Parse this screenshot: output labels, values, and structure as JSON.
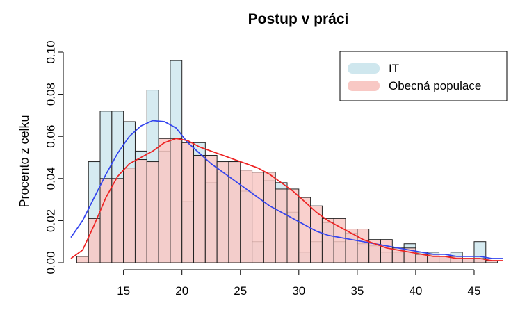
{
  "colors": {
    "it_fill": "#cfe7ee",
    "general_fill": "#f8c8c4",
    "bar_stroke": "#222222",
    "it_curve": "#3344ee",
    "general_curve": "#ee2222",
    "overlap_curve": "#aa88dd"
  },
  "chart_data": {
    "type": "histogram",
    "title": "Postup v práci",
    "xlabel": "",
    "ylabel": "Procento z celku",
    "xlim": [
      10.5,
      47.5
    ],
    "ylim": [
      0,
      0.1
    ],
    "x_ticks": [
      "15",
      "20",
      "25",
      "30",
      "35",
      "40",
      "45"
    ],
    "y_ticks": [
      "0.00",
      "0.02",
      "0.04",
      "0.06",
      "0.08",
      "0.10"
    ],
    "grid": false,
    "legend_position": "top-right",
    "legend": [
      {
        "label": "IT",
        "color": "#cfe7ee"
      },
      {
        "label": "Obecná populace",
        "color": "#f8c8c4"
      }
    ],
    "bin_edges": [
      11,
      12,
      13,
      14,
      15,
      16,
      17,
      18,
      19,
      20,
      21,
      22,
      23,
      24,
      25,
      26,
      27,
      28,
      29,
      30,
      31,
      32,
      33,
      34,
      35,
      36,
      37,
      38,
      39,
      40,
      41,
      42,
      43,
      44,
      45,
      46,
      47
    ],
    "series": [
      {
        "name": "IT",
        "values": [
          0,
          0.048,
          0.072,
          0.072,
          0.067,
          0.053,
          0.082,
          0.053,
          0.096,
          0.029,
          0.057,
          0.038,
          0.043,
          0.048,
          0.034,
          0.01,
          0.039,
          0.038,
          0.024,
          0.005,
          0.01,
          0.019,
          0.01,
          0.014,
          0.009,
          0.008,
          0.005,
          0.005,
          0.009,
          0.005,
          0.005,
          0.003,
          0.005,
          0.002,
          0.01,
          0.001
        ],
        "density": {
          "x": [
            10.5,
            11.5,
            12.5,
            13.5,
            14.5,
            15.5,
            16.5,
            17.5,
            18.5,
            19.5,
            20.5,
            21.5,
            22.5,
            23.5,
            24.5,
            25.5,
            26.5,
            27.5,
            28.5,
            29.5,
            30.5,
            31.5,
            32.5,
            33.5,
            34.5,
            35.5,
            36.5,
            37.5,
            38.5,
            39.5,
            40.5,
            41.5,
            42.5,
            43.5,
            44.5,
            45.5,
            46.5,
            47.5
          ],
          "y": [
            0.012,
            0.02,
            0.031,
            0.042,
            0.052,
            0.06,
            0.065,
            0.0675,
            0.067,
            0.064,
            0.057,
            0.052,
            0.047,
            0.043,
            0.039,
            0.035,
            0.031,
            0.027,
            0.024,
            0.021,
            0.018,
            0.015,
            0.013,
            0.012,
            0.011,
            0.01,
            0.009,
            0.008,
            0.007,
            0.006,
            0.005,
            0.004,
            0.004,
            0.003,
            0.003,
            0.003,
            0.002,
            0.002
          ]
        }
      },
      {
        "name": "Obecná populace",
        "values": [
          0.003,
          0.021,
          0.04,
          0.04,
          0.045,
          0.049,
          0.048,
          0.059,
          0.059,
          0.057,
          0.051,
          0.051,
          0.048,
          0.048,
          0.044,
          0.043,
          0.043,
          0.035,
          0.035,
          0.031,
          0.027,
          0.021,
          0.021,
          0.016,
          0.016,
          0.011,
          0.011,
          0.007,
          0.007,
          0.004,
          0.004,
          0.003,
          0.003,
          0.002,
          0.002,
          0.001
        ],
        "density": {
          "x": [
            10.5,
            11.5,
            12.5,
            13.5,
            14.5,
            15.5,
            16.5,
            17.5,
            18.5,
            19.5,
            20.5,
            21.5,
            22.5,
            23.5,
            24.5,
            25.5,
            26.5,
            27.5,
            28.5,
            29.5,
            30.5,
            31.5,
            32.5,
            33.5,
            34.5,
            35.5,
            36.5,
            37.5,
            38.5,
            39.5,
            40.5,
            41.5,
            42.5,
            43.5,
            44.5,
            45.5,
            46.5,
            47.5
          ],
          "y": [
            0.002,
            0.006,
            0.018,
            0.031,
            0.041,
            0.047,
            0.05,
            0.053,
            0.057,
            0.059,
            0.058,
            0.055,
            0.053,
            0.051,
            0.049,
            0.047,
            0.045,
            0.042,
            0.038,
            0.034,
            0.029,
            0.024,
            0.02,
            0.017,
            0.014,
            0.011,
            0.009,
            0.007,
            0.006,
            0.005,
            0.004,
            0.003,
            0.003,
            0.002,
            0.002,
            0.002,
            0.001,
            0.001
          ]
        }
      }
    ]
  }
}
